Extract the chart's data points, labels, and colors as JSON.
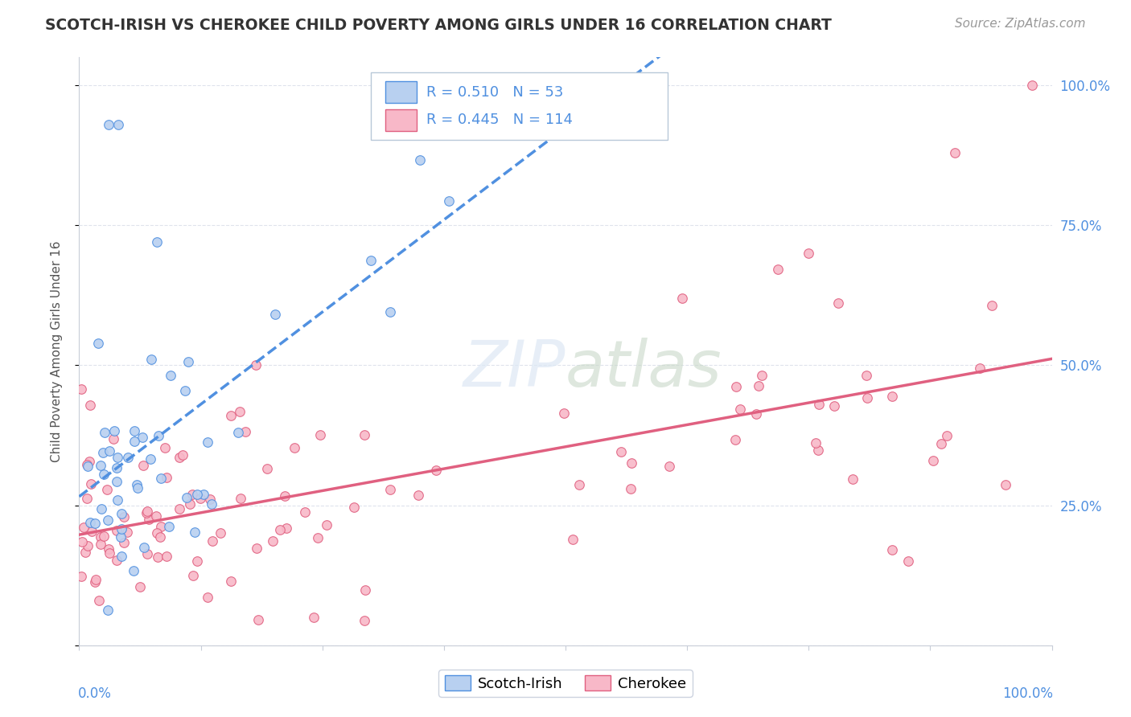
{
  "title": "SCOTCH-IRISH VS CHEROKEE CHILD POVERTY AMONG GIRLS UNDER 16 CORRELATION CHART",
  "source": "Source: ZipAtlas.com",
  "ylabel": "Child Poverty Among Girls Under 16",
  "scotch_irish_color": "#b8d0f0",
  "cherokee_color": "#f8b8c8",
  "scotch_irish_line_color": "#5090e0",
  "cherokee_line_color": "#e06080",
  "watermark_color": "#d0dff0",
  "R_scotch": 0.51,
  "N_scotch": 53,
  "R_cherokee": 0.445,
  "N_cherokee": 114,
  "grid_color": "#d8dde8",
  "spine_color": "#c8cdd8",
  "tick_color": "#5090e0",
  "title_color": "#333333",
  "source_color": "#999999",
  "ylabel_color": "#555555"
}
